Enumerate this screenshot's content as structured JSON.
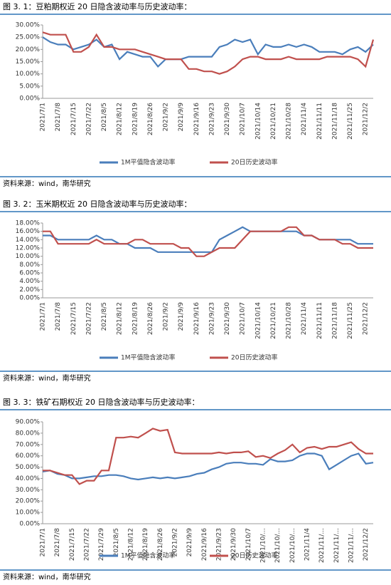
{
  "chart_data": [
    {
      "type": "line",
      "title": "图 3. 1：豆粕期权近 20 日隐含波动率与历史波动率：",
      "source": "资料来源：wind，南华研究",
      "categories": [
        "2021/7/1",
        null,
        "2021/7/8",
        null,
        "2021/7/15",
        null,
        "2021/7/22",
        null,
        "2021/8/5",
        null,
        "2021/8/12",
        null,
        "2021/8/19",
        null,
        "2021/8/26",
        null,
        "2021/9/2",
        null,
        "2021/9/9",
        null,
        "2021/9/16",
        null,
        "2021/9/23",
        null,
        "2021/9/30",
        null,
        "2021/10/7",
        null,
        "2021/10/14",
        null,
        "2021/10/21",
        null,
        "2021/10/28",
        null,
        "2021/11/4",
        null,
        "2021/11/11",
        null,
        "2021/11/18",
        null,
        "2021/11/25",
        null,
        "2021/12/2",
        null
      ],
      "series": [
        {
          "name": "1M平值隐含波动率",
          "color": "#4a7ebb",
          "values": [
            25,
            23,
            22,
            22,
            20,
            21,
            22,
            24,
            21,
            22,
            16,
            19,
            18,
            17,
            17,
            13,
            16,
            16,
            16,
            17,
            17,
            17,
            17,
            21,
            22,
            24,
            23,
            24,
            18,
            22,
            21,
            21,
            22,
            21,
            22,
            21,
            19,
            19,
            19,
            18,
            20,
            21,
            19,
            22
          ]
        },
        {
          "name": "20日历史波动率",
          "color": "#c0504d",
          "values": [
            27,
            26,
            26,
            26,
            19,
            19,
            21,
            26,
            21,
            21,
            20,
            20,
            20,
            19,
            18,
            17,
            16,
            16,
            16,
            12,
            12,
            11,
            11,
            10,
            11,
            13,
            16,
            17,
            17,
            16,
            16,
            16,
            17,
            16,
            16,
            16,
            16,
            17,
            17,
            17,
            17,
            16,
            13,
            24
          ]
        }
      ],
      "ylim": [
        0,
        30
      ],
      "yticks": [
        {
          "value": 0,
          "label": "0.00%"
        },
        {
          "value": 5,
          "label": "5.00%"
        },
        {
          "value": 10,
          "label": "10.00%"
        },
        {
          "value": 15,
          "label": "15.00%"
        },
        {
          "value": 20,
          "label": "20.00%"
        },
        {
          "value": 25,
          "label": "25.00%"
        },
        {
          "value": 30,
          "label": "30.00%"
        }
      ]
    },
    {
      "type": "line",
      "title": "图 3. 2：玉米期权近 20 日隐含波动率与历史波动率：",
      "source": "资料来源：wind，南华研究",
      "categories": [
        "2021/7/1",
        null,
        "2021/7/8",
        null,
        "2021/7/15",
        null,
        "2021/7/22",
        null,
        "2021/8/5",
        null,
        "2021/8/12",
        null,
        "2021/8/19",
        null,
        "2021/8/26",
        null,
        "2021/9/2",
        null,
        "2021/9/9",
        null,
        "2021/9/16",
        null,
        "2021/9/23",
        null,
        "2021/9/30",
        null,
        "2021/10/7",
        null,
        "2021/10/14",
        null,
        "2021/10/21",
        null,
        "2021/10/28",
        null,
        "2021/11/4",
        null,
        "2021/11/11",
        null,
        "2021/11/18",
        null,
        "2021/11/25",
        null,
        "2021/12/2",
        null
      ],
      "series": [
        {
          "name": "1M平值隐含波动率",
          "color": "#4a7ebb",
          "values": [
            15,
            15,
            14,
            14,
            14,
            14,
            14,
            15,
            14,
            14,
            13,
            13,
            12,
            12,
            12,
            11,
            11,
            11,
            11,
            11,
            11,
            11,
            11,
            14,
            15,
            16,
            17,
            16,
            16,
            16,
            16,
            16,
            16,
            16,
            15,
            15,
            14,
            14,
            14,
            14,
            14,
            13,
            13,
            13
          ]
        },
        {
          "name": "20日历史波动率",
          "color": "#c0504d",
          "values": [
            16,
            16,
            13,
            13,
            13,
            13,
            13,
            14,
            13,
            13,
            13,
            13,
            14,
            14,
            13,
            13,
            13,
            13,
            12,
            12,
            10,
            10,
            11,
            12,
            12,
            12,
            14,
            16,
            16,
            16,
            16,
            16,
            17,
            17,
            15,
            15,
            14,
            14,
            14,
            13,
            13,
            12,
            12,
            12
          ]
        }
      ],
      "ylim": [
        0,
        18
      ],
      "yticks": [
        {
          "value": 0,
          "label": "0.00%"
        },
        {
          "value": 2,
          "label": "2.00%"
        },
        {
          "value": 4,
          "label": "4.00%"
        },
        {
          "value": 6,
          "label": "6.00%"
        },
        {
          "value": 8,
          "label": "8.00%"
        },
        {
          "value": 10,
          "label": "10.00%"
        },
        {
          "value": 12,
          "label": "12.00%"
        },
        {
          "value": 14,
          "label": "14.00%"
        },
        {
          "value": 16,
          "label": "16.00%"
        },
        {
          "value": 18,
          "label": "18.00%"
        }
      ]
    },
    {
      "type": "line",
      "title": "图 3. 3：铁矿石期权近 20 日隐含波动率与历史波动率：",
      "source": "资料来源：wind，南华研究",
      "categories": [
        "2021/7/1",
        null,
        "2021/7/8",
        null,
        "2021/7/15",
        null,
        "2021/7/22",
        null,
        "2021/7/29",
        null,
        "2021/8/5",
        null,
        "2021/8/12",
        null,
        "2021/8/19",
        null,
        "2021/8/26",
        null,
        "2021/9/2",
        null,
        "2021/9/9",
        null,
        "2021/9/16",
        null,
        "2021/9/23",
        null,
        "2021/9/30",
        null,
        "2021/10/7",
        null,
        "2021/10/...",
        null,
        "2021/10/...",
        null,
        "2021/10/...",
        null,
        "2021/11/4",
        null,
        "2021/11/...",
        null,
        "2021/11/...",
        null,
        "2021/11/...",
        null,
        "2021/12/2",
        null
      ],
      "series": [
        {
          "name": "1M平值隐含波动率",
          "color": "#4a7ebb",
          "values": [
            46,
            47,
            44,
            43,
            40,
            40,
            41,
            42,
            42,
            43,
            43,
            42,
            40,
            39,
            40,
            41,
            40,
            41,
            40,
            41,
            42,
            44,
            45,
            48,
            50,
            53,
            54,
            54,
            53,
            53,
            52,
            57,
            55,
            55,
            56,
            60,
            62,
            62,
            60,
            48,
            52,
            56,
            60,
            62,
            53,
            54
          ]
        },
        {
          "name": "20日历史波动率",
          "color": "#c0504d",
          "values": [
            47,
            47,
            45,
            43,
            43,
            35,
            38,
            38,
            47,
            47,
            76,
            76,
            77,
            76,
            80,
            84,
            82,
            83,
            63,
            62,
            62,
            62,
            62,
            62,
            63,
            62,
            63,
            63,
            64,
            59,
            60,
            58,
            62,
            65,
            70,
            63,
            67,
            68,
            66,
            68,
            68,
            70,
            72,
            66,
            62,
            62
          ]
        }
      ],
      "ylim": [
        0,
        90
      ],
      "yticks": [
        {
          "value": 0,
          "label": "0.00%"
        },
        {
          "value": 10,
          "label": "10.00%"
        },
        {
          "value": 20,
          "label": "20.00%"
        },
        {
          "value": 30,
          "label": "30.00%"
        },
        {
          "value": 40,
          "label": "40.00%"
        },
        {
          "value": 50,
          "label": "50.00%"
        },
        {
          "value": 60,
          "label": "60.00%"
        },
        {
          "value": 70,
          "label": "70.00%"
        },
        {
          "value": 80,
          "label": "80.00%"
        },
        {
          "value": 90,
          "label": "90.00%"
        }
      ]
    }
  ]
}
